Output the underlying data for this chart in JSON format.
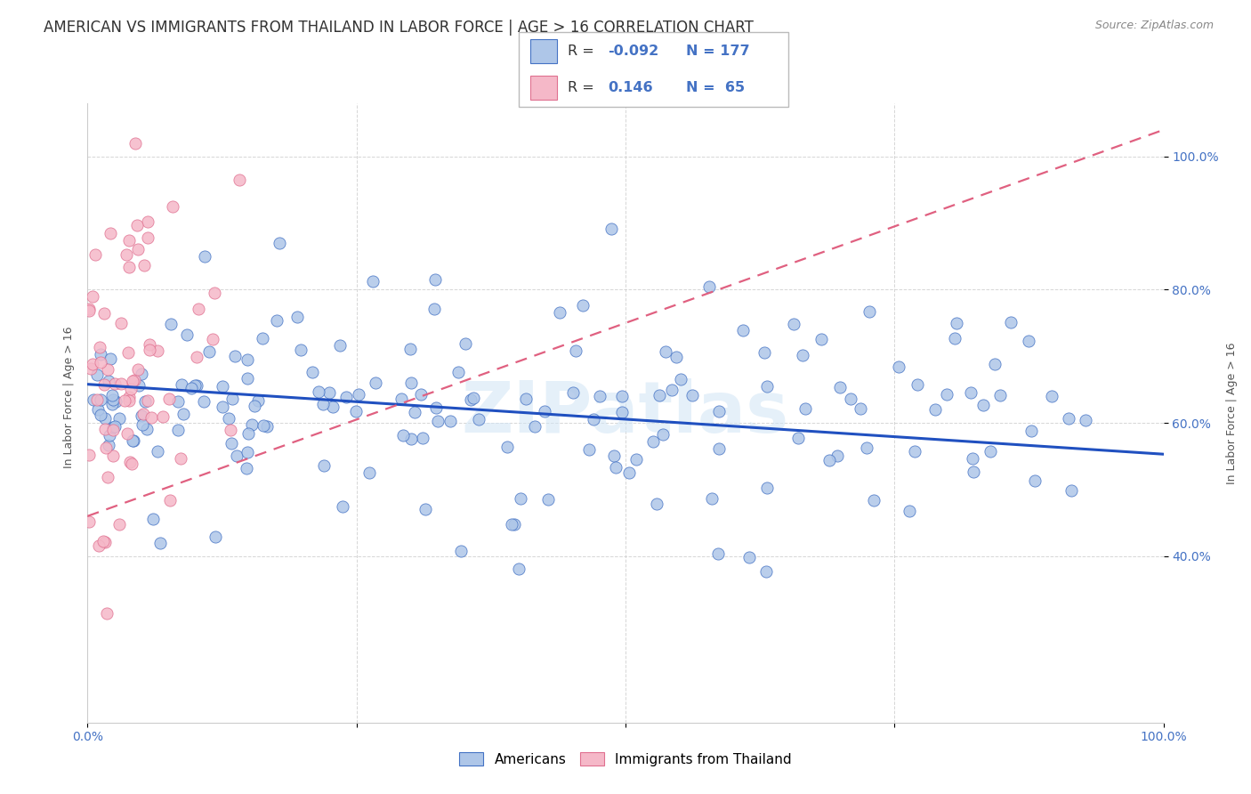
{
  "title": "AMERICAN VS IMMIGRANTS FROM THAILAND IN LABOR FORCE | AGE > 16 CORRELATION CHART",
  "source": "Source: ZipAtlas.com",
  "ylabel": "In Labor Force | Age > 16",
  "legend_r_blue": "R = -0.092",
  "legend_r_pink": "R =  0.146",
  "legend_n_blue": "N = 177",
  "legend_n_pink": "N =  65",
  "blue_fill": "#aec6e8",
  "pink_fill": "#f5b8c8",
  "blue_edge": "#4472c4",
  "pink_edge": "#e07090",
  "blue_line": "#2050c0",
  "pink_line": "#e06080",
  "watermark": "ZIPatlas",
  "bg_color": "#ffffff",
  "grid_color": "#cccccc",
  "tick_color": "#4472c4",
  "title_color": "#333333",
  "ylabel_color": "#555555",
  "blue_R": -0.092,
  "pink_R": 0.146,
  "blue_N": 177,
  "pink_N": 65,
  "xlim": [
    0.0,
    1.0
  ],
  "ylim_low": 0.15,
  "ylim_high": 1.08,
  "yticks": [
    0.4,
    0.6,
    0.8,
    1.0
  ],
  "yticklabels": [
    "40.0%",
    "60.0%",
    "80.0%",
    "100.0%"
  ],
  "seed": 99
}
